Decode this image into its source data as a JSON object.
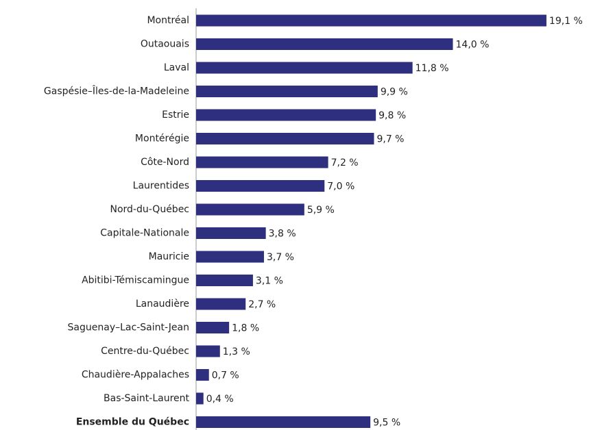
{
  "chart_data": {
    "type": "bar",
    "orientation": "horizontal",
    "color": "#2e2f7f",
    "categories": [
      "Montréal",
      "Outaouais",
      "Laval",
      "Gaspésie–Îles-de-la-Madeleine",
      "Estrie",
      "Montérégie",
      "Côte-Nord",
      "Laurentides",
      "Nord-du-Québec",
      "Capitale-Nationale",
      "Mauricie",
      "Abitibi-Témiscamingue",
      "Lanaudière",
      "Saguenay–Lac-Saint-Jean",
      "Centre-du-Québec",
      "Chaudière-Appalaches",
      "Bas-Saint-Laurent",
      "Ensemble du Québec"
    ],
    "values": [
      19.1,
      14.0,
      11.8,
      9.9,
      9.8,
      9.7,
      7.2,
      7.0,
      5.9,
      3.8,
      3.7,
      3.1,
      2.7,
      1.8,
      1.3,
      0.7,
      0.4,
      9.5
    ],
    "value_labels": [
      "19,1 %",
      "14,0 %",
      "11,8 %",
      "9,9 %",
      "9,8 %",
      "9,7 %",
      "7,2 %",
      "7,0 %",
      "5,9 %",
      "3,8 %",
      "3,7 %",
      "3,1 %",
      "2,7 %",
      "1,8 %",
      "1,3 %",
      "0,7 %",
      "0,4 %",
      "9,5 %"
    ],
    "xlim": [
      0,
      20
    ]
  }
}
